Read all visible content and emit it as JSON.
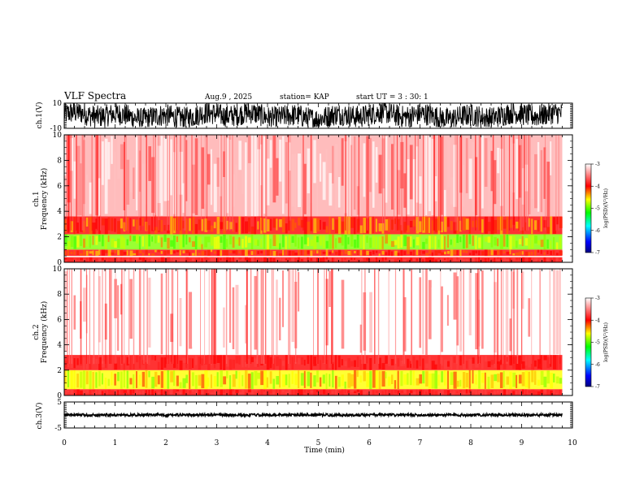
{
  "header": {
    "title": "VLF Spectra",
    "date": "Aug.9  , 2025",
    "station": "station= KAP",
    "start": "start  UT  =   3  : 30: 1"
  },
  "chart_data": [
    {
      "id": "ch1-waveform",
      "type": "line",
      "ylabel": "ch.1(V)",
      "ylim": [
        -10,
        10
      ],
      "yticks": [
        "10",
        "-10"
      ],
      "xlim": [
        0,
        10
      ],
      "data_extent_min": 9.8,
      "description_values": {
        "approx_amplitude_min": -8,
        "approx_amplitude_max": 10
      }
    },
    {
      "id": "ch1-spectrogram",
      "type": "heatmap",
      "ylabel_top": "ch.1",
      "ylabel": "Frequency  (kHz)",
      "ylim": [
        0,
        10
      ],
      "yticks": [
        "0",
        "2",
        "4",
        "6",
        "8",
        "10"
      ],
      "xlim": [
        0,
        10
      ],
      "data_extent_min": 9.8,
      "bands_khz": [
        {
          "from": 0.0,
          "to": 0.4,
          "level": "red"
        },
        {
          "from": 0.5,
          "to": 1.0,
          "level": "red-yellow"
        },
        {
          "from": 1.0,
          "to": 2.2,
          "level": "green-yellow"
        },
        {
          "from": 2.2,
          "to": 3.6,
          "level": "red-yellow"
        },
        {
          "from": 3.6,
          "to": 10.0,
          "level": "red-sparse"
        }
      ]
    },
    {
      "id": "ch2-spectrogram",
      "type": "heatmap",
      "ylabel_top": "ch.2",
      "ylabel": "Frequency  (kHz)",
      "ylim": [
        0,
        10
      ],
      "yticks": [
        "0",
        "2",
        "4",
        "6",
        "8",
        "10"
      ],
      "xlim": [
        0,
        10
      ],
      "data_extent_min": 9.8,
      "bands_khz": [
        {
          "from": 0.0,
          "to": 0.5,
          "level": "red"
        },
        {
          "from": 0.5,
          "to": 2.0,
          "level": "yellow-green"
        },
        {
          "from": 2.0,
          "to": 3.2,
          "level": "red"
        },
        {
          "from": 3.2,
          "to": 10.0,
          "level": "sparse-red"
        }
      ]
    },
    {
      "id": "ch3-waveform",
      "type": "line",
      "ylabel": "ch.3(V)",
      "ylim": [
        -5,
        5
      ],
      "yticks": [
        "5",
        "-5"
      ],
      "xlim": [
        0,
        10
      ],
      "data_extent_min": 9.8,
      "description_values": {
        "approx_level": 0,
        "approx_amplitude": 1
      }
    }
  ],
  "xaxis": {
    "label": "Time  (min)",
    "ticks": [
      "0",
      "1",
      "2",
      "3",
      "4",
      "5",
      "6",
      "7",
      "8",
      "9",
      "10"
    ]
  },
  "colorbar": {
    "label": "log(PSD)(V²/Hz)",
    "ticks": [
      "-3",
      "-4",
      "-5",
      "-6",
      "-7"
    ],
    "range": [
      -7,
      -3
    ],
    "stops": [
      "#000080",
      "#0000ff",
      "#00ffff",
      "#00ff00",
      "#ffff00",
      "#ff0000",
      "#ffffff"
    ]
  }
}
